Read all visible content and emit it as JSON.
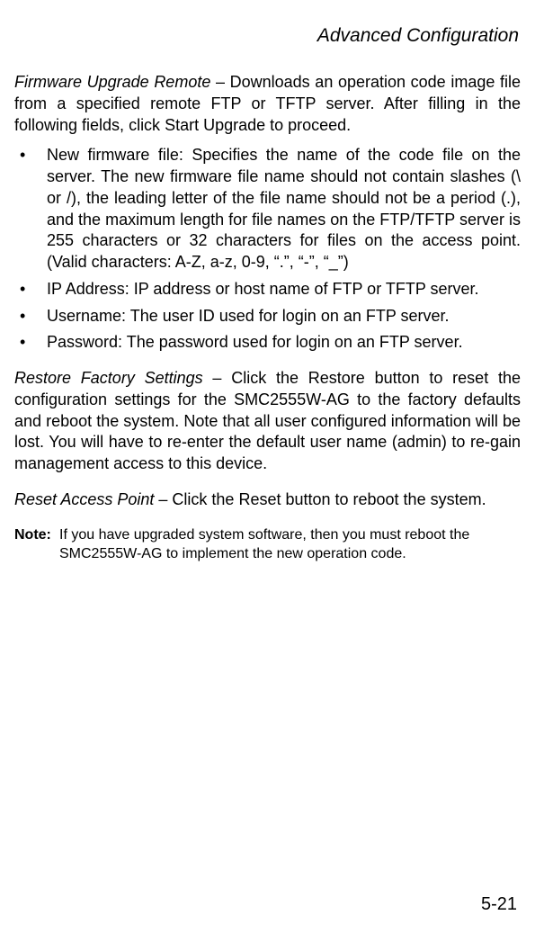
{
  "header": "Advanced Configuration",
  "firmware": {
    "term": "Firmware Upgrade Remote",
    "text": " – Downloads an operation code image file from a specified remote FTP or TFTP server. After filling in the following fields, click Start Upgrade to proceed."
  },
  "bullets": [
    "New firmware file: Specifies the name of the code file on the server. The new firmware file name should not contain slashes (\\ or /), the leading letter of the file name should not be a period (.), and the maximum length for file names on the FTP/TFTP server is 255 characters or 32 characters for files on the access point. (Valid characters: A-Z, a-z, 0-9, “.”, “-”, “_”)",
    "IP Address: IP address or host name of FTP or TFTP server.",
    "Username: The user ID used for login on an FTP server.",
    "Password: The password used for login on an FTP server."
  ],
  "restore": {
    "term": "Restore Factory Settings",
    "text": " – Click the Restore button to reset the configuration settings for the SMC2555W-AG to the factory defaults and reboot the system. Note that all user configured information will be lost. You will have to re-enter the default user name (admin) to re-gain management access to this device."
  },
  "reset": {
    "term": "Reset Access Point",
    "text": " – Click the Reset button to reboot the system."
  },
  "note": {
    "label": "Note:",
    "text": "If you have upgraded system software, then you must reboot the SMC2555W-AG to implement the new operation code."
  },
  "pagenum": "5-21"
}
